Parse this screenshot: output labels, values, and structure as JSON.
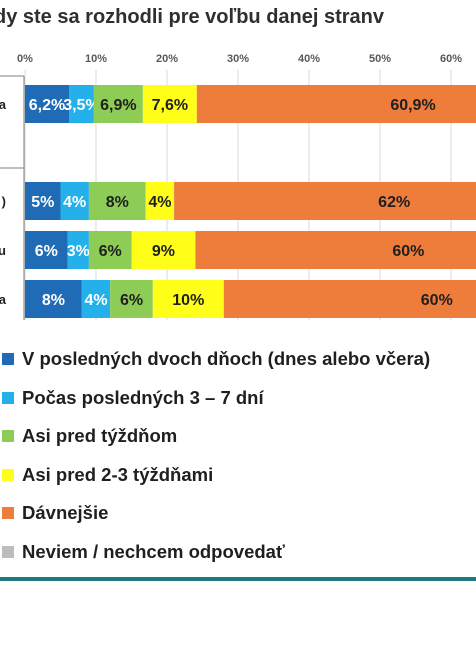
{
  "title": "dy ste sa rozhodli pre voľbu danej stranv",
  "chart_data": {
    "type": "bar",
    "orientation": "horizontal",
    "stacked": true,
    "axis": {
      "ticks": [
        0,
        10,
        20,
        30,
        40,
        50,
        60
      ],
      "tick_labels": [
        "0%",
        "10%",
        "20%",
        "30%",
        "40%",
        "50%",
        "60%"
      ],
      "xlim": [
        0,
        63
      ],
      "grid": true
    },
    "categories": [
      "a",
      "",
      ")",
      "u",
      "a"
    ],
    "series": [
      {
        "name": "V posledných dvoch dňoch (dnes alebo včera)",
        "color": "#1f6bb5",
        "text_color": "#ffffff",
        "values": [
          6.2,
          null,
          5,
          6,
          8
        ],
        "labels": [
          "6,2%",
          "",
          "5%",
          "6%",
          "8%"
        ]
      },
      {
        "name": "Počas posledných 3 – 7 dní",
        "color": "#24b0ea",
        "text_color": "#ffffff",
        "values": [
          3.5,
          null,
          4,
          3,
          4
        ],
        "labels": [
          "3,5%",
          "",
          "4%",
          "3%",
          "4%"
        ]
      },
      {
        "name": "Asi pred týždňom",
        "color": "#8dcc55",
        "text_color": "#1f1f1f",
        "values": [
          6.9,
          null,
          8,
          6,
          6
        ],
        "labels": [
          "6,9%",
          "",
          "8%",
          "6%",
          "6%"
        ]
      },
      {
        "name": "Asi pred 2-3 týždňami",
        "color": "#ffff1a",
        "text_color": "#1f1f1f",
        "values": [
          7.6,
          null,
          4,
          9,
          10
        ],
        "labels": [
          "7,6%",
          "",
          "4%",
          "9%",
          "10%"
        ]
      },
      {
        "name": "Dávnejšie",
        "color": "#ee7d3b",
        "text_color": "#1f1f1f",
        "values": [
          60.9,
          null,
          62,
          60,
          60
        ],
        "labels": [
          "60,9%",
          "",
          "62%",
          "60%",
          "60%"
        ]
      },
      {
        "name": "Neviem / nechcem odpovedať",
        "color": "#bdbdbd",
        "text_color": "#1f1f1f",
        "values": [
          null,
          null,
          null,
          null,
          null
        ],
        "labels": [
          "",
          "",
          "",
          "",
          ""
        ]
      }
    ]
  }
}
